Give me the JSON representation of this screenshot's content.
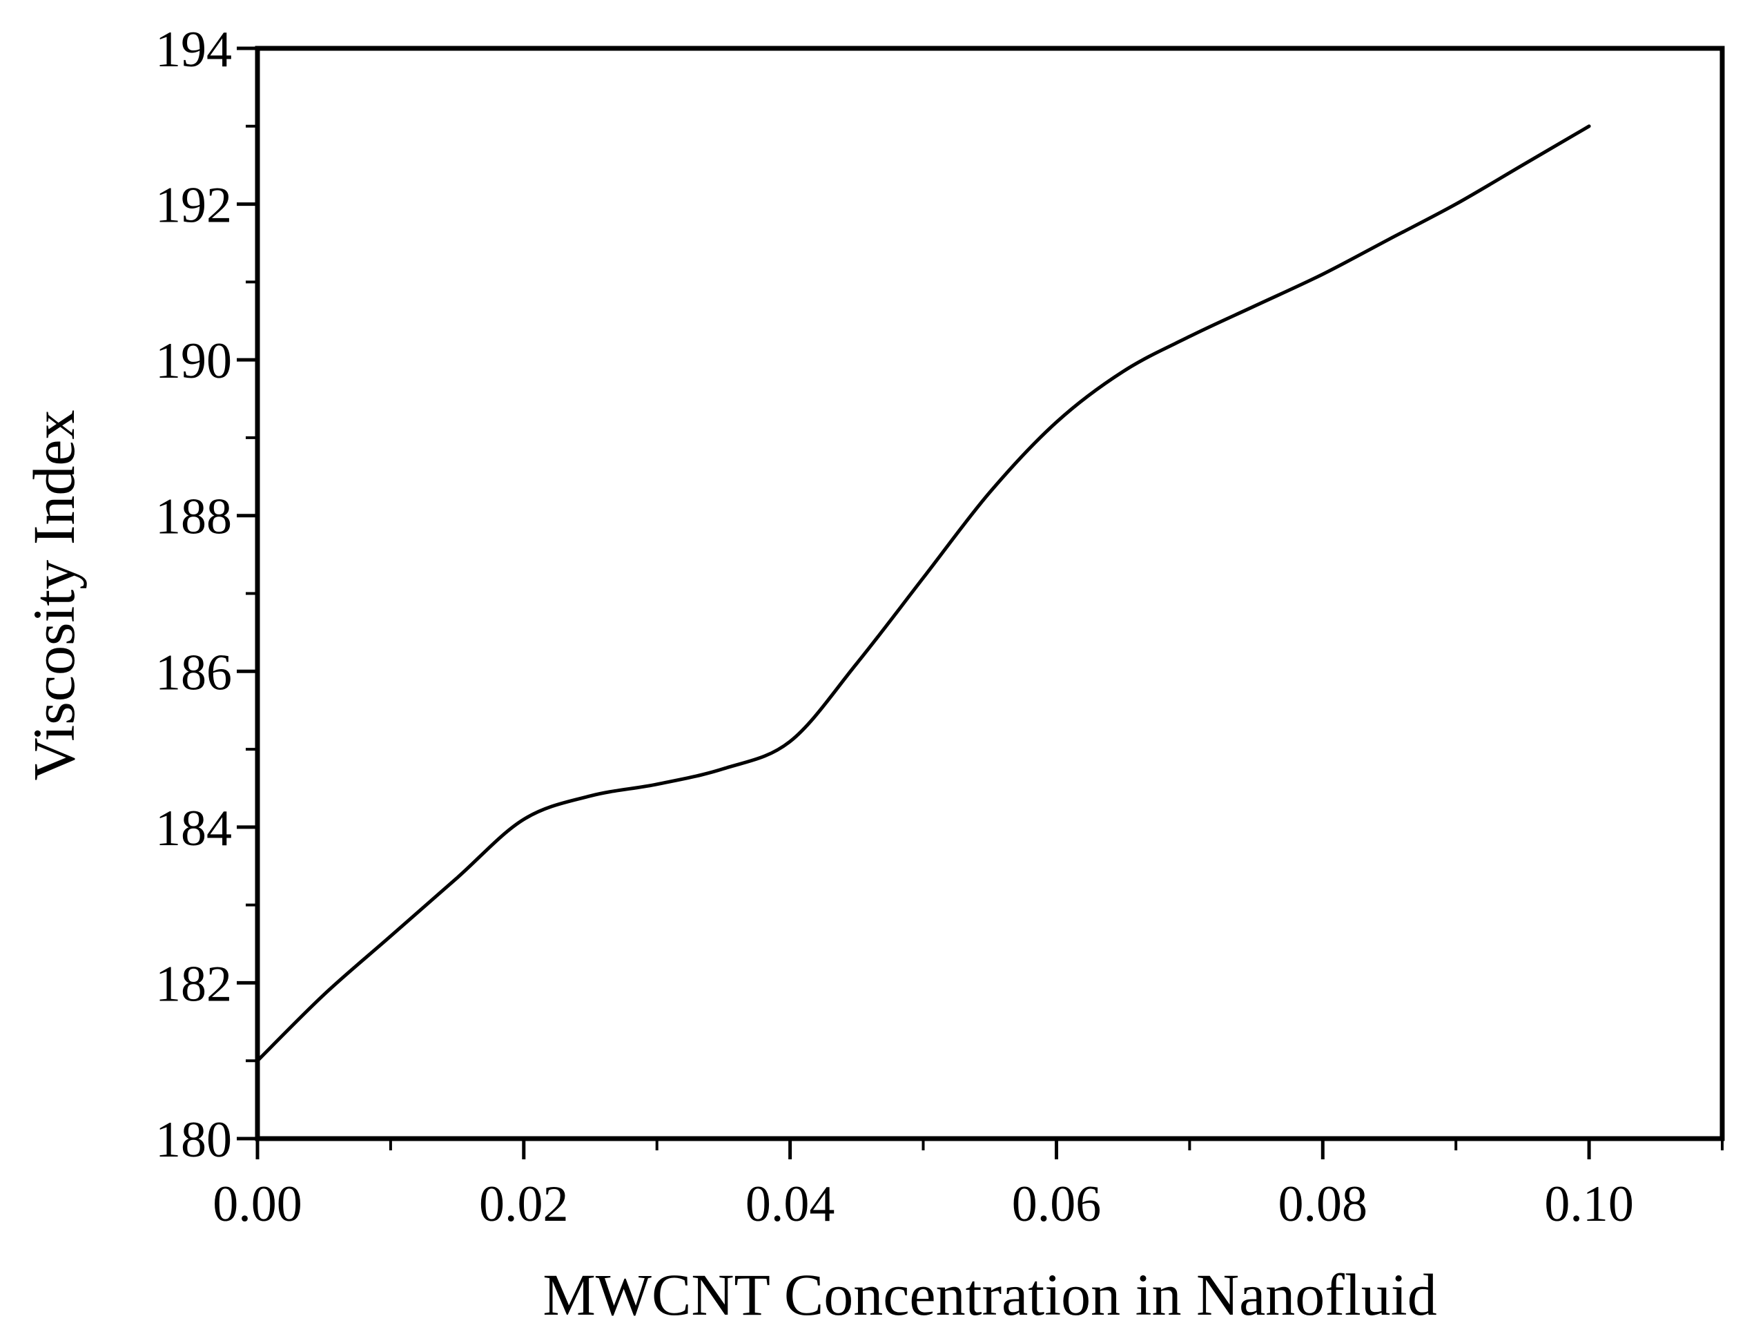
{
  "figure": {
    "background": "#ffffff",
    "frame_color": "#000000",
    "text_color": "#000000"
  },
  "chart_data": {
    "type": "line",
    "title": "",
    "xlabel": "MWCNT Concentration in Nanofluid",
    "ylabel": "Viscosity Index",
    "xlim": [
      0,
      0.11
    ],
    "ylim": [
      180,
      194
    ],
    "grid": false,
    "legend": "none",
    "frame": "full-box",
    "tick_direction": "out",
    "x_major_ticks": [
      0.0,
      0.02,
      0.04,
      0.06,
      0.08,
      0.1
    ],
    "x_major_tick_labels": [
      "0.00",
      "0.02",
      "0.04",
      "0.06",
      "0.08",
      "0.10"
    ],
    "x_minor_ticks": [
      0.01,
      0.03,
      0.05,
      0.07,
      0.09,
      0.11
    ],
    "y_major_ticks": [
      180,
      182,
      184,
      186,
      188,
      190,
      192,
      194
    ],
    "y_major_tick_labels": [
      "180",
      "182",
      "184",
      "186",
      "188",
      "190",
      "192",
      "194"
    ],
    "y_minor_ticks": [
      181,
      183,
      185,
      187,
      189,
      191,
      193
    ],
    "series": [
      {
        "name": "viscosity-index-vs-mwcnt-concentration",
        "color": "#000000",
        "x": [
          0.0,
          0.005,
          0.01,
          0.015,
          0.02,
          0.025,
          0.03,
          0.035,
          0.04,
          0.045,
          0.05,
          0.055,
          0.06,
          0.065,
          0.07,
          0.075,
          0.08,
          0.085,
          0.09,
          0.095,
          0.1
        ],
        "y": [
          181.0,
          181.85,
          182.6,
          183.35,
          184.1,
          184.4,
          184.55,
          184.75,
          185.1,
          186.1,
          187.2,
          188.3,
          189.2,
          189.85,
          190.3,
          190.7,
          191.1,
          191.55,
          192.0,
          192.5,
          193.0
        ]
      }
    ]
  }
}
